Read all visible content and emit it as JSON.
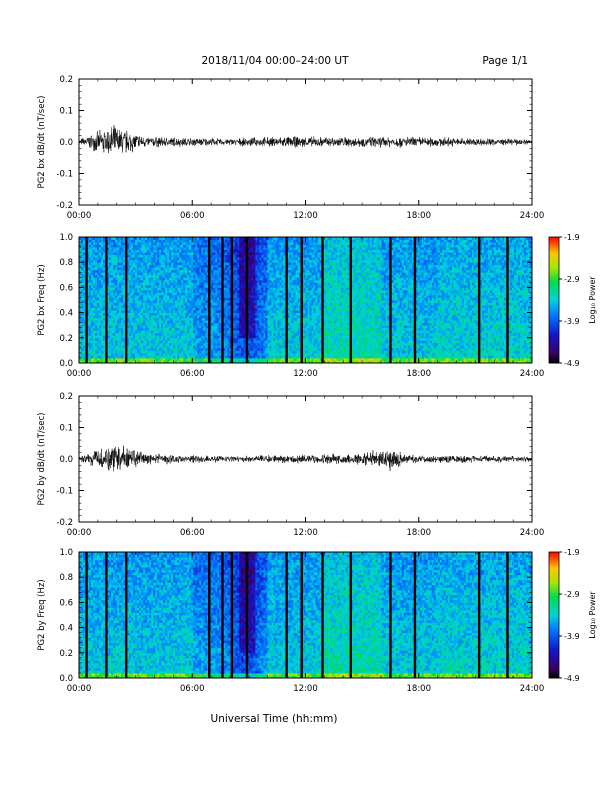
{
  "header": {
    "title": "2018/11/04  00:00–24:00 UT",
    "page": "Page 1/1"
  },
  "footer": {
    "xlabel": "Universal Time (hh:mm)"
  },
  "colors": {
    "trace": "#000000",
    "axes": "#000000",
    "background": "#ffffff"
  },
  "chart_data": [
    {
      "type": "line",
      "ylabel": "PG2 bx dB/dt (nT/sec)",
      "ylim": [
        -0.2,
        0.2
      ],
      "yticks": [
        "0.2",
        "0.1",
        "0.0",
        "-0.1",
        "-0.2"
      ],
      "xlim_hours": [
        0,
        24
      ],
      "xticks": [
        "00:00",
        "06:00",
        "12:00",
        "18:00",
        "24:00"
      ],
      "series": [
        {
          "x_hours": [
            0,
            1.5,
            1.8,
            2.5,
            3.5,
            8,
            9,
            11,
            15,
            17,
            24
          ],
          "envelope": [
            0.01,
            0.05,
            0.06,
            0.045,
            0.02,
            0.012,
            0.015,
            0.02,
            0.018,
            0.02,
            0.01
          ]
        }
      ]
    },
    {
      "type": "heatmap",
      "ylabel": "PG2 bx Freq (Hz)",
      "ylim": [
        0.0,
        1.0
      ],
      "yticks": [
        "1.0",
        "0.8",
        "0.6",
        "0.4",
        "0.2",
        "0.0"
      ],
      "xlim_hours": [
        0,
        24
      ],
      "xticks": [
        "00:00",
        "06:00",
        "12:00",
        "18:00",
        "24:00"
      ],
      "colorbar": {
        "label": "Log₁₀ Power",
        "range": [
          -4.9,
          -1.9
        ],
        "ticks": [
          "-1.9",
          "-2.9",
          "-3.9",
          "-4.9"
        ]
      },
      "gap_hours": [
        0.4,
        1.45,
        2.5,
        6.9,
        7.6,
        8.1,
        8.9,
        11.0,
        11.8,
        12.9,
        14.4,
        16.5,
        17.8,
        21.2,
        22.7
      ]
    },
    {
      "type": "line",
      "ylabel": "PG2 by dB/dt (nT/sec)",
      "ylim": [
        -0.2,
        0.2
      ],
      "yticks": [
        "0.2",
        "0.1",
        "0.0",
        "-0.1",
        "-0.2"
      ],
      "xlim_hours": [
        0,
        24
      ],
      "xticks": [
        "00:00",
        "06:00",
        "12:00",
        "18:00",
        "24:00"
      ],
      "series": [
        {
          "x_hours": [
            0,
            1.5,
            1.8,
            2.5,
            3.5,
            8,
            9,
            11,
            15,
            16.8,
            17.2,
            24
          ],
          "envelope": [
            0.01,
            0.04,
            0.06,
            0.045,
            0.02,
            0.01,
            0.012,
            0.015,
            0.02,
            0.05,
            0.015,
            0.01
          ]
        }
      ]
    },
    {
      "type": "heatmap",
      "ylabel": "PG2 by Freq (Hz)",
      "ylim": [
        0.0,
        1.0
      ],
      "yticks": [
        "1.0",
        "0.8",
        "0.6",
        "0.4",
        "0.2",
        "0.0"
      ],
      "xlim_hours": [
        0,
        24
      ],
      "xticks": [
        "00:00",
        "06:00",
        "12:00",
        "18:00",
        "24:00"
      ],
      "colorbar": {
        "label": "Log₁₀ Power",
        "range": [
          -4.9,
          -1.9
        ],
        "ticks": [
          "-1.9",
          "-2.9",
          "-3.9",
          "-4.9"
        ]
      },
      "gap_hours": [
        0.4,
        1.45,
        2.5,
        6.9,
        7.6,
        8.1,
        8.9,
        11.0,
        11.8,
        12.9,
        14.4,
        16.5,
        17.8,
        21.2,
        22.7
      ]
    }
  ]
}
